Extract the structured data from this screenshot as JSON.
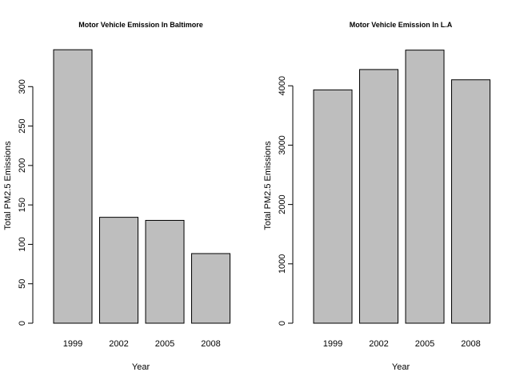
{
  "chart_data": [
    {
      "type": "bar",
      "title": "Motor Vehicle Emission In Baltimore",
      "xlabel": "Year",
      "ylabel": "Total PM2.5 Emissions",
      "categories": [
        "1999",
        "2002",
        "2005",
        "2008"
      ],
      "values": [
        346.8,
        134.3,
        130.4,
        88.3
      ],
      "ylim": [
        0,
        350
      ],
      "yticks": [
        0,
        50,
        100,
        150,
        200,
        250,
        300
      ],
      "bar_color": "#bebebe",
      "grid": false,
      "legend": "none"
    },
    {
      "type": "bar",
      "title": "Motor Vehicle Emission In L.A",
      "xlabel": "Year",
      "ylabel": "Total PM2.5 Emissions",
      "categories": [
        "1999",
        "2002",
        "2005",
        "2008"
      ],
      "values": [
        3931,
        4274,
        4601,
        4101
      ],
      "ylim": [
        0,
        4650
      ],
      "yticks": [
        0,
        1000,
        2000,
        3000,
        4000
      ],
      "bar_color": "#bebebe",
      "grid": false,
      "legend": "none"
    }
  ]
}
